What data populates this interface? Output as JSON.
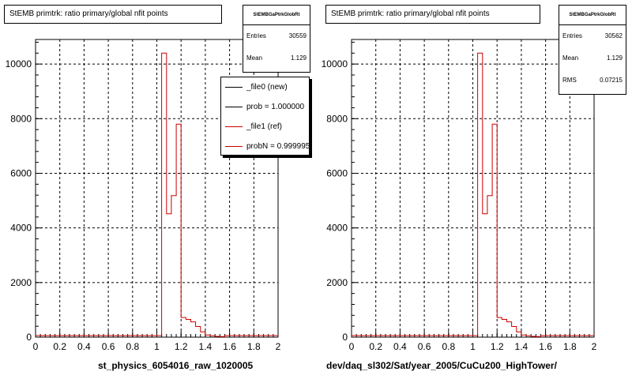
{
  "colors": {
    "new": "#000000",
    "ref": "#cc0000",
    "grid": "#000000"
  },
  "panels": [
    {
      "title": "StEMB primtrk: ratio primary/global nfit points",
      "xlabel": "st_physics_6054016_raw_1020005",
      "stats": {
        "name": "StEMBGaPtrkGlobRt",
        "rows": [
          {
            "label": "Entries",
            "value": "30559"
          },
          {
            "label": "Mean",
            "value": "1.129"
          }
        ]
      },
      "legend": [
        {
          "label": "_file0 (new)",
          "color": "#000000"
        },
        {
          "label": "prob = 1.000000",
          "color": "#000000"
        },
        {
          "label": "_file1 (ref)",
          "color": "#cc0000"
        },
        {
          "label": "probN = 0.999995",
          "color": "#cc0000"
        }
      ]
    },
    {
      "title": "StEMB primtrk: ratio primary/global nfit points",
      "xlabel": "dev/daq_sl302/Sat/year_2005/CuCu200_HighTower/",
      "stats": {
        "name": "StEMBGaPtrkGlobRt",
        "rows": [
          {
            "label": "Entries",
            "value": "30562"
          },
          {
            "label": "Mean",
            "value": "1.129"
          },
          {
            "label": "RMS",
            "value": "0.07215"
          }
        ]
      },
      "legend": []
    }
  ],
  "chart_data": [
    {
      "type": "bar",
      "title": "StEMB primtrk: ratio primary/global nfit points",
      "xlabel": "st_physics_6054016_raw_1020005",
      "xlim": [
        0,
        2
      ],
      "ylim": [
        0,
        10900
      ],
      "x_ticks": [
        "0",
        "0.2",
        "0.4",
        "0.6",
        "0.8",
        "1",
        "1.2",
        "1.4",
        "1.6",
        "1.8",
        "2"
      ],
      "y_ticks": [
        "0",
        "2000",
        "4000",
        "6000",
        "8000",
        "10000"
      ],
      "bin_width": 0.04,
      "bins_x_low": [
        1.04,
        1.08,
        1.12,
        1.16,
        1.2,
        1.24,
        1.28,
        1.32,
        1.36,
        1.4,
        1.44,
        1.48,
        1.52
      ],
      "bins_count": [
        10400,
        4520,
        5180,
        7800,
        720,
        650,
        560,
        390,
        190,
        80,
        50,
        30,
        20
      ],
      "grid": true
    },
    {
      "type": "bar",
      "title": "StEMB primtrk: ratio primary/global nfit points",
      "xlabel": "dev/daq_sl302/Sat/year_2005/CuCu200_HighTower/",
      "xlim": [
        0,
        2
      ],
      "ylim": [
        0,
        10900
      ],
      "x_ticks": [
        "0",
        "0.2",
        "0.4",
        "0.6",
        "0.8",
        "1",
        "1.2",
        "1.4",
        "1.6",
        "1.8",
        "2"
      ],
      "y_ticks": [
        "0",
        "2000",
        "4000",
        "6000",
        "8000",
        "10000"
      ],
      "bin_width": 0.04,
      "bins_x_low": [
        1.04,
        1.08,
        1.12,
        1.16,
        1.2,
        1.24,
        1.28,
        1.32,
        1.36,
        1.4,
        1.44,
        1.48,
        1.52
      ],
      "bins_count": [
        10400,
        4520,
        5180,
        7800,
        720,
        650,
        560,
        390,
        190,
        80,
        50,
        30,
        20
      ],
      "grid": true
    }
  ]
}
